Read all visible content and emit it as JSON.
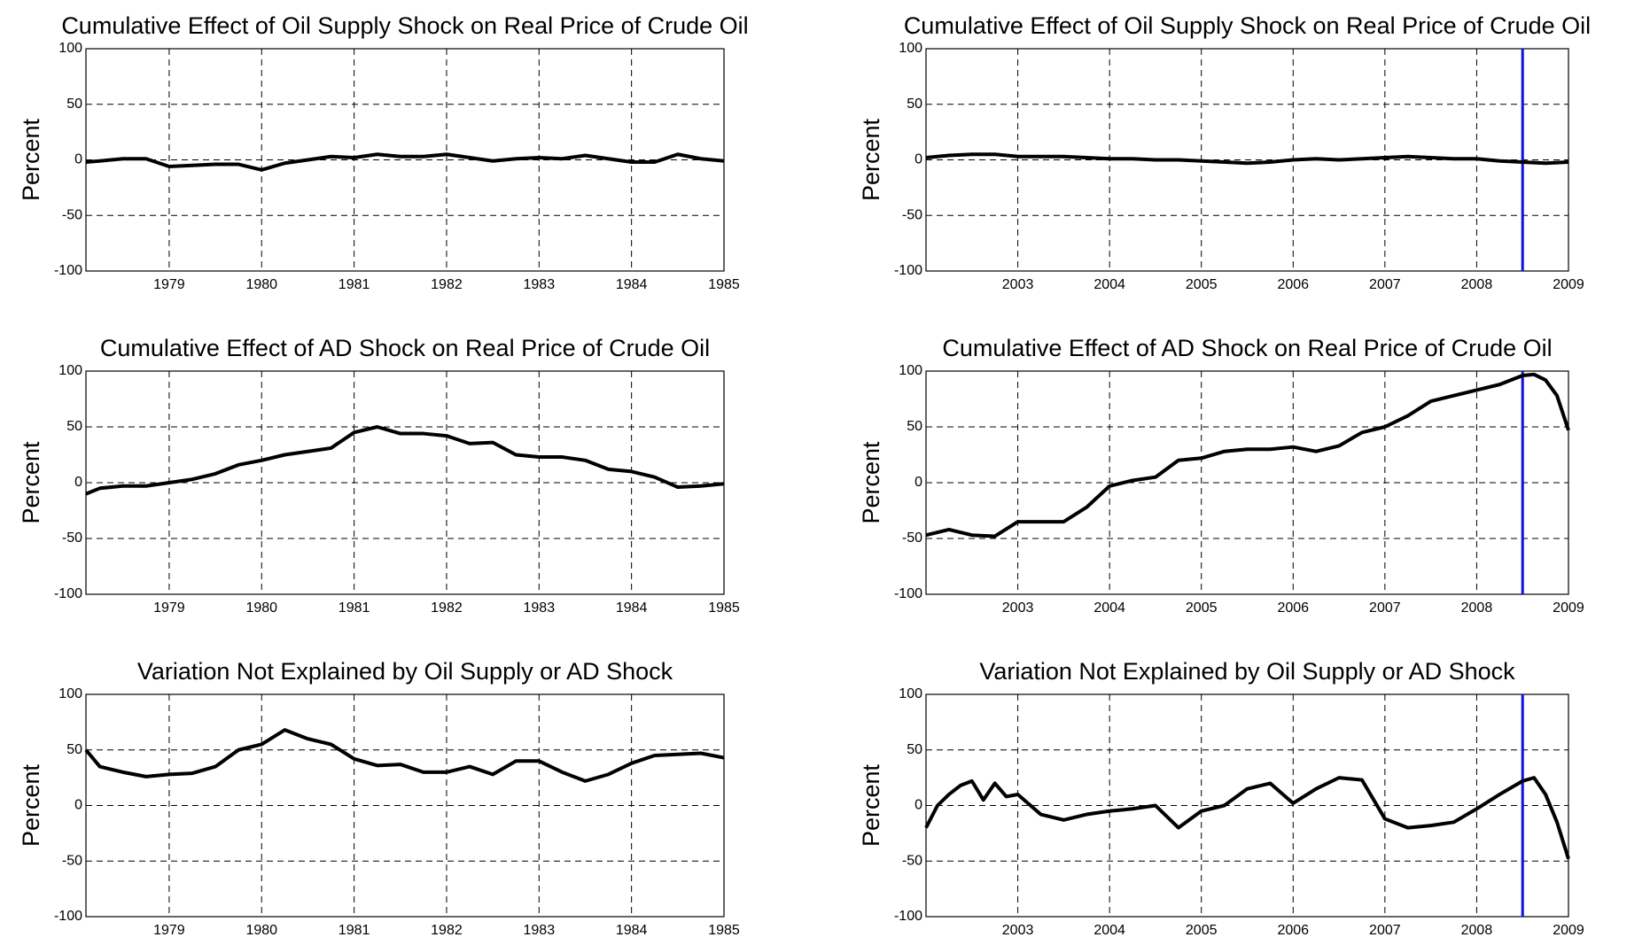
{
  "chart_data": [
    {
      "type": "line",
      "title": "Cumulative Effect of Oil Supply Shock on Real Price of Crude Oil",
      "y_label": "Percent",
      "x": [
        1978.1,
        1978.25,
        1978.5,
        1978.75,
        1979,
        1979.25,
        1979.5,
        1979.75,
        1980,
        1980.25,
        1980.5,
        1980.75,
        1981,
        1981.25,
        1981.5,
        1981.75,
        1982,
        1982.25,
        1982.5,
        1982.75,
        1983,
        1983.25,
        1983.5,
        1983.75,
        1984,
        1984.25,
        1984.5,
        1984.75,
        1985
      ],
      "series": [
        {
          "color": "#000000",
          "values": [
            -2,
            -1,
            1,
            1,
            -6,
            -5,
            -4,
            -4,
            -9,
            -3,
            0,
            3,
            2,
            5,
            3,
            3,
            5,
            2,
            -1,
            1,
            2,
            1,
            4,
            1,
            -2,
            -2,
            5,
            1,
            -1
          ]
        }
      ],
      "xlim": [
        1978.1,
        1985
      ],
      "xticks": [
        1979,
        1980,
        1981,
        1982,
        1983,
        1984,
        1985
      ],
      "ylim": [
        -100,
        100
      ],
      "yticks": [
        -100,
        -50,
        0,
        50,
        100
      ],
      "grid": true
    },
    {
      "type": "line",
      "title": "Cumulative Effect of Oil Supply Shock on Real Price of Crude Oil",
      "y_label": "Percent",
      "x": [
        2002,
        2002.25,
        2002.5,
        2002.75,
        2003,
        2003.25,
        2003.5,
        2003.75,
        2004,
        2004.25,
        2004.5,
        2004.75,
        2005,
        2005.25,
        2005.5,
        2005.75,
        2006,
        2006.25,
        2006.5,
        2006.75,
        2007,
        2007.25,
        2007.5,
        2007.75,
        2008,
        2008.25,
        2008.5,
        2008.75,
        2009
      ],
      "series": [
        {
          "color": "#000000",
          "values": [
            2,
            4,
            5,
            5,
            3,
            3,
            3,
            2,
            1,
            1,
            0,
            0,
            -1,
            -2,
            -3,
            -2,
            0,
            1,
            0,
            1,
            2,
            3,
            2,
            1,
            1,
            -1,
            -2,
            -3,
            -2
          ]
        }
      ],
      "xlim": [
        2002,
        2009
      ],
      "xticks": [
        2003,
        2004,
        2005,
        2006,
        2007,
        2008,
        2009
      ],
      "ylim": [
        -100,
        100
      ],
      "yticks": [
        -100,
        -50,
        0,
        50,
        100
      ],
      "grid": true,
      "vline": 2008.5,
      "vline_color": "#1010e0"
    },
    {
      "type": "line",
      "title": "Cumulative Effect of AD Shock on Real Price of Crude Oil",
      "y_label": "Percent",
      "x": [
        1978.1,
        1978.25,
        1978.5,
        1978.75,
        1979,
        1979.25,
        1979.5,
        1979.75,
        1980,
        1980.25,
        1980.5,
        1980.75,
        1981,
        1981.25,
        1981.5,
        1981.75,
        1982,
        1982.25,
        1982.5,
        1982.75,
        1983,
        1983.25,
        1983.5,
        1983.75,
        1984,
        1984.25,
        1984.5,
        1984.75,
        1985
      ],
      "series": [
        {
          "color": "#000000",
          "values": [
            -10,
            -5,
            -3,
            -3,
            0,
            3,
            8,
            16,
            20,
            25,
            28,
            31,
            45,
            50,
            44,
            44,
            42,
            35,
            36,
            25,
            23,
            23,
            20,
            12,
            10,
            5,
            -4,
            -3,
            -1
          ]
        }
      ],
      "xlim": [
        1978.1,
        1985
      ],
      "xticks": [
        1979,
        1980,
        1981,
        1982,
        1983,
        1984,
        1985
      ],
      "ylim": [
        -100,
        100
      ],
      "yticks": [
        -100,
        -50,
        0,
        50,
        100
      ],
      "grid": true
    },
    {
      "type": "line",
      "title": "Cumulative Effect of AD Shock on Real Price of Crude Oil",
      "y_label": "Percent",
      "x": [
        2002,
        2002.25,
        2002.5,
        2002.75,
        2003,
        2003.25,
        2003.5,
        2003.75,
        2004,
        2004.25,
        2004.5,
        2004.75,
        2005,
        2005.25,
        2005.5,
        2005.75,
        2006,
        2006.25,
        2006.5,
        2006.75,
        2007,
        2007.25,
        2007.5,
        2007.75,
        2008,
        2008.25,
        2008.5,
        2008.625,
        2008.75,
        2008.875,
        2009
      ],
      "series": [
        {
          "color": "#000000",
          "values": [
            -47,
            -42,
            -47,
            -48,
            -35,
            -35,
            -35,
            -22,
            -3,
            2,
            5,
            20,
            22,
            28,
            30,
            30,
            32,
            28,
            33,
            45,
            50,
            60,
            73,
            78,
            83,
            88,
            96,
            97,
            92,
            78,
            47
          ]
        }
      ],
      "xlim": [
        2002,
        2009
      ],
      "xticks": [
        2003,
        2004,
        2005,
        2006,
        2007,
        2008,
        2009
      ],
      "ylim": [
        -100,
        100
      ],
      "yticks": [
        -100,
        -50,
        0,
        50,
        100
      ],
      "grid": true,
      "vline": 2008.5,
      "vline_color": "#1010e0"
    },
    {
      "type": "line",
      "title": "Variation Not Explained by Oil Supply or AD Shock",
      "y_label": "Percent",
      "x": [
        1978.1,
        1978.25,
        1978.5,
        1978.75,
        1979,
        1979.25,
        1979.5,
        1979.75,
        1980,
        1980.25,
        1980.5,
        1980.75,
        1981,
        1981.25,
        1981.5,
        1981.75,
        1982,
        1982.25,
        1982.5,
        1982.75,
        1983,
        1983.25,
        1983.5,
        1983.75,
        1984,
        1984.25,
        1984.5,
        1984.75,
        1985
      ],
      "series": [
        {
          "color": "#000000",
          "values": [
            50,
            35,
            30,
            26,
            28,
            29,
            35,
            50,
            55,
            68,
            60,
            55,
            42,
            36,
            37,
            30,
            30,
            35,
            28,
            40,
            40,
            30,
            22,
            28,
            38,
            45,
            46,
            47,
            43
          ]
        }
      ],
      "xlim": [
        1978.1,
        1985
      ],
      "xticks": [
        1979,
        1980,
        1981,
        1982,
        1983,
        1984,
        1985
      ],
      "ylim": [
        -100,
        100
      ],
      "yticks": [
        -100,
        -50,
        0,
        50,
        100
      ],
      "grid": true
    },
    {
      "type": "line",
      "title": "Variation Not Explained by Oil Supply or AD Shock",
      "y_label": "Percent",
      "x": [
        2002,
        2002.125,
        2002.25,
        2002.375,
        2002.5,
        2002.625,
        2002.75,
        2002.875,
        2003,
        2003.25,
        2003.5,
        2003.75,
        2004,
        2004.25,
        2004.5,
        2004.75,
        2005,
        2005.25,
        2005.5,
        2005.75,
        2006,
        2006.25,
        2006.5,
        2006.75,
        2007,
        2007.25,
        2007.5,
        2007.75,
        2008,
        2008.25,
        2008.5,
        2008.625,
        2008.75,
        2008.875,
        2009
      ],
      "series": [
        {
          "color": "#000000",
          "values": [
            -20,
            0,
            10,
            18,
            22,
            5,
            20,
            8,
            10,
            -8,
            -13,
            -8,
            -5,
            -3,
            0,
            -20,
            -5,
            0,
            15,
            20,
            2,
            15,
            25,
            23,
            -12,
            -20,
            -18,
            -15,
            -3,
            10,
            22,
            25,
            10,
            -15,
            -48
          ]
        }
      ],
      "xlim": [
        2002,
        2009
      ],
      "xticks": [
        2003,
        2004,
        2005,
        2006,
        2007,
        2008,
        2009
      ],
      "ylim": [
        -100,
        100
      ],
      "yticks": [
        -100,
        -50,
        0,
        50,
        100
      ],
      "grid": true,
      "vline": 2008.5,
      "vline_color": "#1010e0"
    }
  ]
}
